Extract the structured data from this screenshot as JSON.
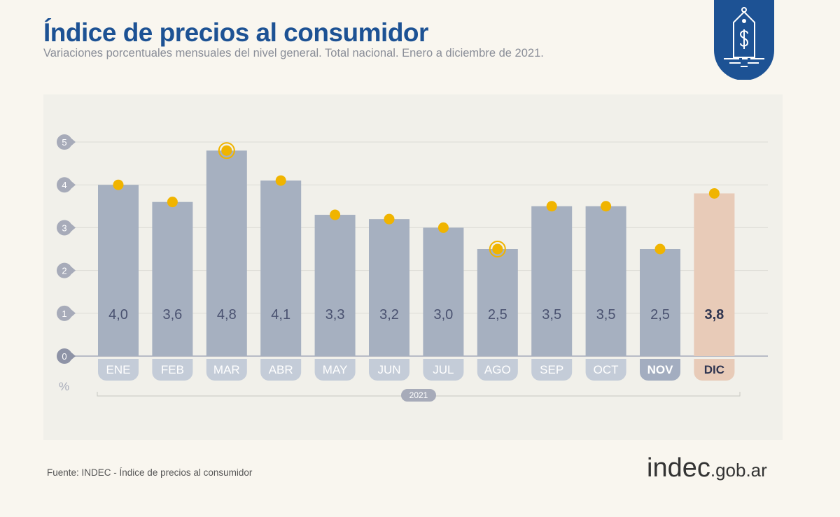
{
  "header": {
    "title": "Índice de precios al consumidor",
    "subtitle": "Variaciones porcentuales mensuales del nivel general. Total nacional. Enero a diciembre de 2021."
  },
  "footer": {
    "source": "Fuente: INDEC - Índice de precios al consumidor",
    "logo_main": "indec",
    "logo_domain": ".gob.ar"
  },
  "icon": "price-tag-dollar-icon",
  "colors": {
    "title": "#1d5294",
    "bar": "#a6b0c0",
    "highlight_bar": "#e8cbb8",
    "marker": "#f0b400",
    "badge": "#1d5294"
  },
  "chart_data": {
    "type": "bar",
    "categories": [
      "ENE",
      "FEB",
      "MAR",
      "ABR",
      "MAY",
      "JUN",
      "JUL",
      "AGO",
      "SEP",
      "OCT",
      "NOV",
      "DIC"
    ],
    "values": [
      4.0,
      3.6,
      4.8,
      4.1,
      3.3,
      3.2,
      3.0,
      2.5,
      3.5,
      3.5,
      2.5,
      3.8
    ],
    "value_labels": [
      "4,0",
      "3,6",
      "4,8",
      "4,1",
      "3,3",
      "3,2",
      "3,0",
      "2,5",
      "3,5",
      "3,5",
      "2,5",
      "3,8"
    ],
    "highlighted": "DIC",
    "peak_markers": [
      "MAR",
      "AGO"
    ],
    "ylabel": "%",
    "yticks": [
      0,
      1,
      2,
      3,
      4,
      5
    ],
    "ylim": [
      0,
      5
    ],
    "group_label": "2021",
    "grid": true
  }
}
